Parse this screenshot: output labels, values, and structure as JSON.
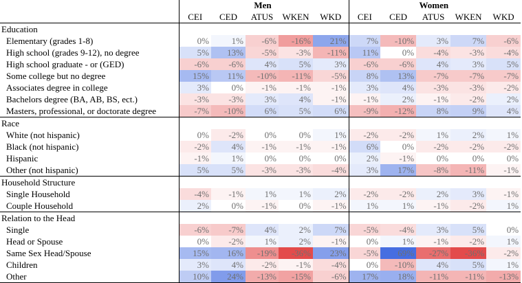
{
  "header": {
    "men": "Men",
    "women": "Women",
    "columns": [
      "CEI",
      "CED",
      "ATUS",
      "WKEN",
      "WKD"
    ]
  },
  "sections": [
    {
      "title": "Education",
      "rows": [
        {
          "label": "Elementary (grades 1-8)",
          "men": [
            "0%",
            "1%",
            "-6%",
            "-16%",
            "21%"
          ],
          "women": [
            "7%",
            "-10%",
            "3%",
            "7%",
            "-6%"
          ]
        },
        {
          "label": "High school (grades 9-12), no degree",
          "men": [
            "5%",
            "13%",
            "-5%",
            "-3%",
            "-11%"
          ],
          "women": [
            "11%",
            "0%",
            "-4%",
            "-3%",
            "-4%"
          ]
        },
        {
          "label": "High school graduate - or (GED)",
          "men": [
            "-6%",
            "-6%",
            "4%",
            "5%",
            "3%"
          ],
          "women": [
            "-6%",
            "-6%",
            "4%",
            "3%",
            "5%"
          ]
        },
        {
          "label": "Some college but no degree",
          "men": [
            "15%",
            "11%",
            "-10%",
            "-11%",
            "-5%"
          ],
          "women": [
            "8%",
            "13%",
            "-7%",
            "-7%",
            "-7%"
          ]
        },
        {
          "label": "Associates degree in college",
          "men": [
            "3%",
            "0%",
            "-1%",
            "-1%",
            "-1%"
          ],
          "women": [
            "3%",
            "4%",
            "-3%",
            "-3%",
            "-2%"
          ]
        },
        {
          "label": "Bachelors degree (BA, AB, BS, ect.)",
          "men": [
            "-3%",
            "-3%",
            "3%",
            "4%",
            "-1%"
          ],
          "women": [
            "-1%",
            "2%",
            "-1%",
            "-2%",
            "2%"
          ]
        },
        {
          "label": "Masters, professional, or doctorate degree",
          "men": [
            "-7%",
            "-10%",
            "6%",
            "5%",
            "6%"
          ],
          "women": [
            "-9%",
            "-12%",
            "8%",
            "9%",
            "4%"
          ]
        }
      ]
    },
    {
      "title": "Race",
      "rows": [
        {
          "label": "White (not hispanic)",
          "men": [
            "0%",
            "-2%",
            "0%",
            "0%",
            "1%"
          ],
          "women": [
            "-2%",
            "-2%",
            "1%",
            "2%",
            "1%"
          ]
        },
        {
          "label": "Black (not hispanic)",
          "men": [
            "-2%",
            "4%",
            "-1%",
            "-1%",
            "-1%"
          ],
          "women": [
            "6%",
            "0%",
            "-2%",
            "-2%",
            "-2%"
          ]
        },
        {
          "label": "Hispanic",
          "men": [
            "-1%",
            "1%",
            "0%",
            "0%",
            "0%"
          ],
          "women": [
            "2%",
            "-1%",
            "0%",
            "0%",
            "0%"
          ]
        },
        {
          "label": "Other (not hispanic)",
          "men": [
            "5%",
            "5%",
            "-3%",
            "-3%",
            "-4%"
          ],
          "women": [
            "3%",
            "17%",
            "-8%",
            "-11%",
            "-1%"
          ]
        }
      ]
    },
    {
      "title": "Household Structure",
      "rows": [
        {
          "label": "Single Household",
          "men": [
            "-4%",
            "-1%",
            "1%",
            "1%",
            "2%"
          ],
          "women": [
            "-2%",
            "-2%",
            "2%",
            "3%",
            "-1%"
          ]
        },
        {
          "label": "Couple Household",
          "men": [
            "2%",
            "0%",
            "-1%",
            "0%",
            "-1%"
          ],
          "women": [
            "1%",
            "1%",
            "-1%",
            "-2%",
            "1%"
          ]
        }
      ]
    },
    {
      "title": "Relation to the Head",
      "rows": [
        {
          "label": "Single",
          "men": [
            "-6%",
            "-7%",
            "4%",
            "2%",
            "7%"
          ],
          "women": [
            "-5%",
            "-4%",
            "3%",
            "5%",
            "0%"
          ]
        },
        {
          "label": "Head or Spouse",
          "men": [
            "0%",
            "-2%",
            "1%",
            "2%",
            "-1%"
          ],
          "women": [
            "0%",
            "1%",
            "-1%",
            "-2%",
            "1%"
          ]
        },
        {
          "label": "Same Sex Head/Spouse",
          "men": [
            "15%",
            "16%",
            "-19%",
            "-36%",
            "23%"
          ],
          "women": [
            "-5%",
            "69%",
            "-27%",
            "-36%",
            "-2%"
          ]
        },
        {
          "label": "Children",
          "men": [
            "3%",
            "4%",
            "-2%",
            "-1%",
            "-4%"
          ],
          "women": [
            "0%",
            "-10%",
            "4%",
            "5%",
            "1%"
          ]
        },
        {
          "label": "Other",
          "men": [
            "10%",
            "24%",
            "-13%",
            "-15%",
            "-6%"
          ],
          "women": [
            "17%",
            "18%",
            "-11%",
            "-11%",
            "-13%"
          ]
        }
      ]
    }
  ]
}
